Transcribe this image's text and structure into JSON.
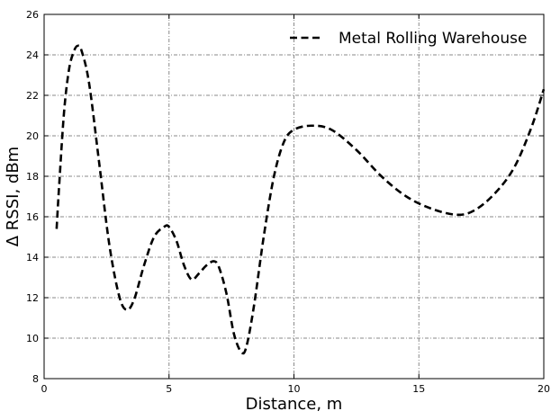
{
  "chart_data": {
    "type": "line",
    "xlabel": "Distance, m",
    "ylabel": "Δ RSSI, dBm",
    "xlim": [
      0,
      20
    ],
    "ylim": [
      8,
      26
    ],
    "x_ticks": [
      0,
      5,
      10,
      15,
      20
    ],
    "y_ticks": [
      8,
      10,
      12,
      14,
      16,
      18,
      20,
      22,
      24,
      26
    ],
    "grid": true,
    "legend_position": "top-right",
    "series": [
      {
        "name": "Metal Rolling Warehouse",
        "color": "#000000",
        "line_style": "dashed",
        "x": [
          0.5,
          0.6,
          0.8,
          1.0,
          1.2,
          1.35,
          1.5,
          1.8,
          2.2,
          2.6,
          3.0,
          3.3,
          3.6,
          4.0,
          4.4,
          4.8,
          5.0,
          5.3,
          5.6,
          5.9,
          6.2,
          6.5,
          6.8,
          7.0,
          7.3,
          7.6,
          7.9,
          8.1,
          8.4,
          8.8,
          9.2,
          9.6,
          10.0,
          10.7,
          11.5,
          12.5,
          13.5,
          14.5,
          15.5,
          16.5,
          17.2,
          18.0,
          18.8,
          19.5,
          20.0
        ],
        "y": [
          15.4,
          17.5,
          21.2,
          23.3,
          24.2,
          24.45,
          24.2,
          22.6,
          18.7,
          14.7,
          12.1,
          11.4,
          11.9,
          13.6,
          15.0,
          15.5,
          15.5,
          14.8,
          13.6,
          12.9,
          13.2,
          13.6,
          13.8,
          13.5,
          12.2,
          10.2,
          9.3,
          9.6,
          11.6,
          15.1,
          18.0,
          19.7,
          20.3,
          20.5,
          20.3,
          19.3,
          18.0,
          17.0,
          16.4,
          16.1,
          16.3,
          17.1,
          18.4,
          20.4,
          22.3
        ]
      }
    ]
  }
}
